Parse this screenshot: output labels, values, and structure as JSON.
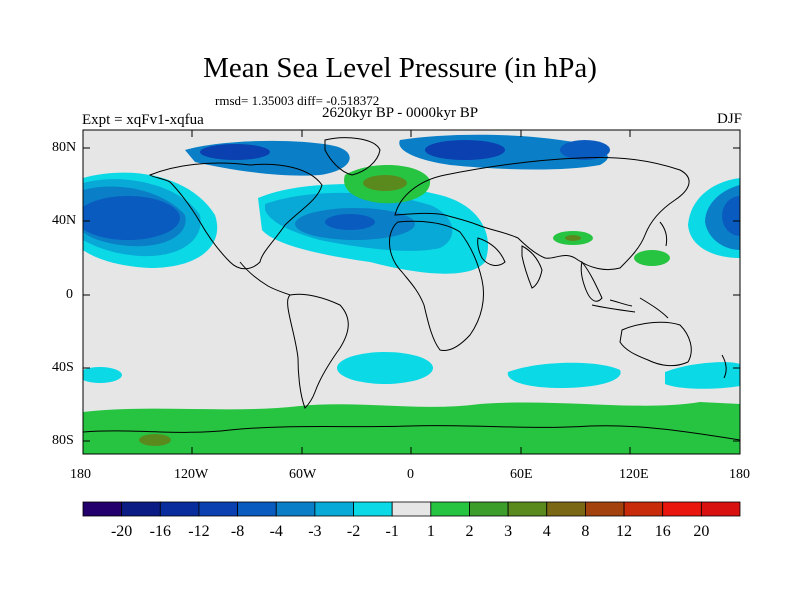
{
  "title": "Mean Sea Level Pressure (in hPa)",
  "stats": "rmsd= 1.35003  diff= -0.518372",
  "period": "2620kyr BP - 0000kyr BP",
  "experiment": "Expt = xqFv1-xqfua",
  "season": "DJF",
  "lat_labels": [
    "80N",
    "40N",
    "0",
    "40S",
    "80S"
  ],
  "lon_labels": [
    "180",
    "120W",
    "60W",
    "0",
    "60E",
    "120E",
    "180"
  ],
  "colorbar": {
    "labels": [
      "-20",
      "-16",
      "-12",
      "-8",
      "-4",
      "-3",
      "-2",
      "-1",
      "1",
      "2",
      "3",
      "4",
      "8",
      "12",
      "16",
      "20"
    ],
    "colors": [
      "#23006b",
      "#0b1d85",
      "#0a2d9e",
      "#0a40b0",
      "#0a5bbf",
      "#0a7fc7",
      "#08a9d6",
      "#0bd9e6",
      "#e6e6e6",
      "#27c441",
      "#3c9d2b",
      "#5a8a1e",
      "#7a6814",
      "#a3420d",
      "#c72b0a",
      "#e8160c",
      "#d91010"
    ]
  },
  "map_fills": {
    "background": "#e6e6e6",
    "coast": "#000000"
  }
}
